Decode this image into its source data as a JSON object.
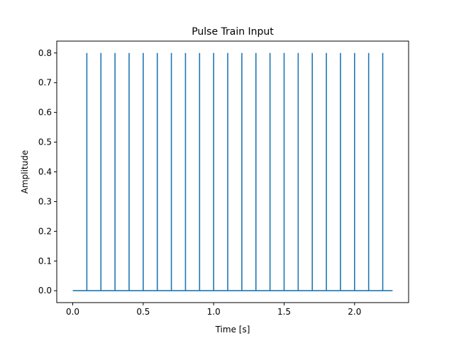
{
  "chart_data": {
    "type": "line",
    "title": "Pulse Train Input",
    "xlabel": "Time [s]",
    "ylabel": "Amplitude",
    "xlim": [
      -0.1135,
      2.3835
    ],
    "ylim": [
      -0.04,
      0.84
    ],
    "grid": false,
    "legend": "none",
    "line_color": "#1f77b4",
    "x_ticks": [
      0.0,
      0.5,
      1.0,
      1.5,
      2.0
    ],
    "x_tick_labels": [
      "0.0",
      "0.5",
      "1.0",
      "1.5",
      "2.0"
    ],
    "y_ticks": [
      0.0,
      0.1,
      0.2,
      0.3,
      0.4,
      0.5,
      0.6,
      0.7,
      0.8
    ],
    "y_tick_labels": [
      "0.0",
      "0.1",
      "0.2",
      "0.3",
      "0.4",
      "0.5",
      "0.6",
      "0.7",
      "0.8"
    ],
    "baseline": {
      "x_start": 0.0,
      "x_end": 2.27,
      "value": 0.0
    },
    "pulse_amplitude": 0.8,
    "pulse_times": [
      0.1,
      0.2,
      0.3,
      0.4,
      0.5,
      0.6,
      0.7,
      0.8,
      0.9,
      1.0,
      1.1,
      1.2,
      1.3,
      1.4,
      1.5,
      1.6,
      1.7,
      1.8,
      1.9,
      2.0,
      2.1,
      2.2
    ]
  }
}
